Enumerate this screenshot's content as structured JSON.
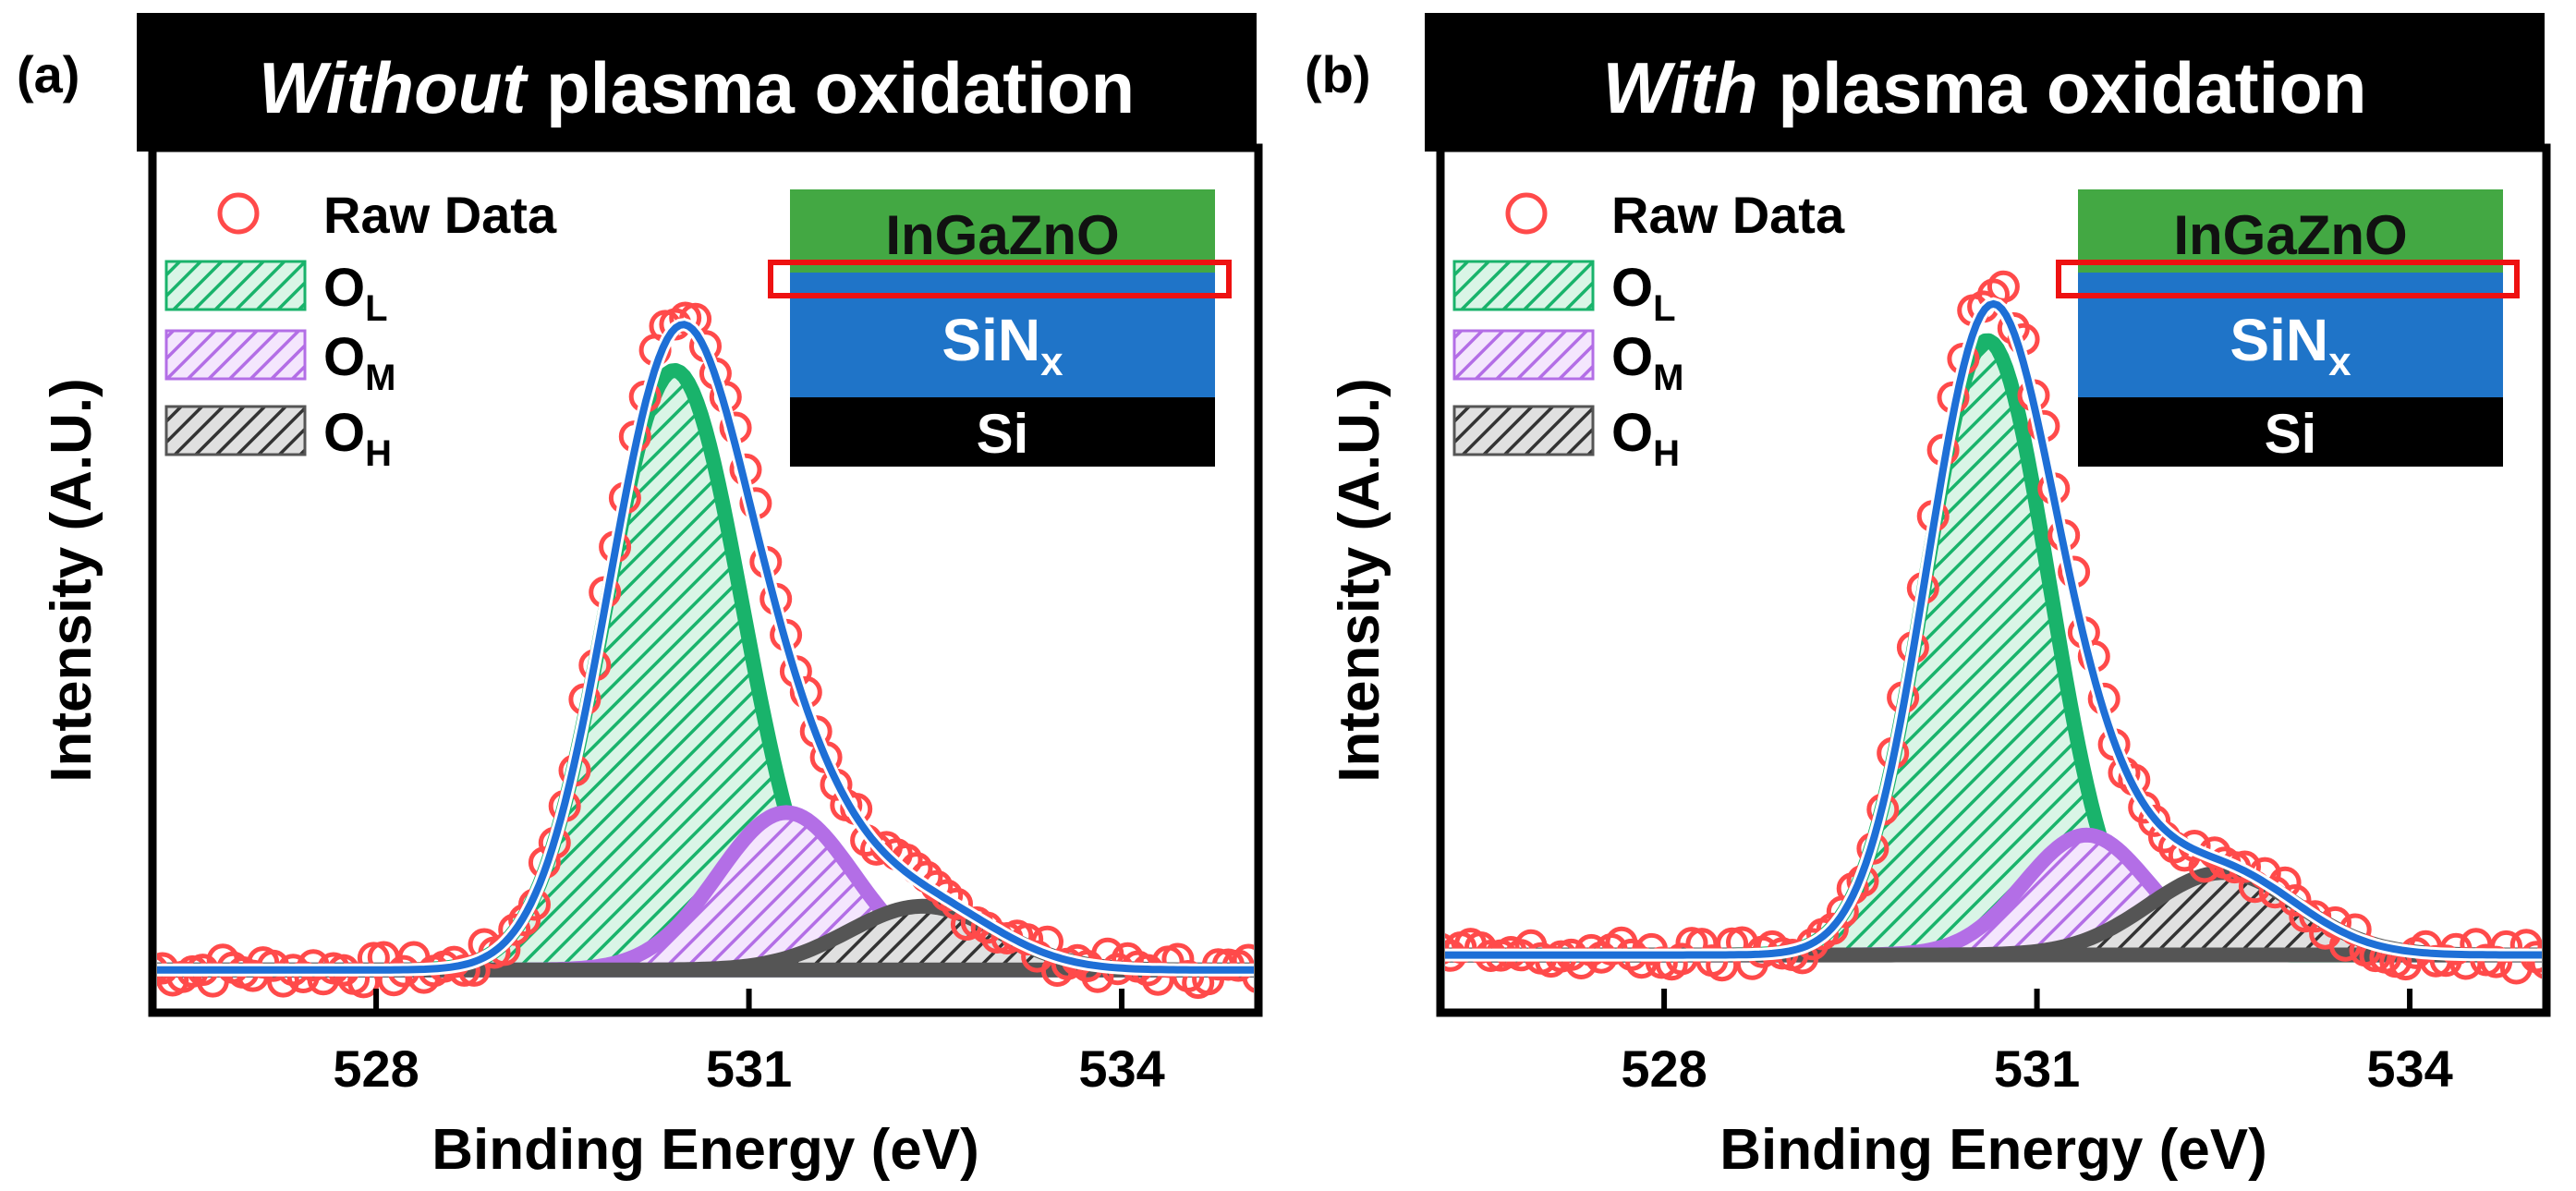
{
  "colors": {
    "raw": "#ff4a4a",
    "fit": "#1e6fd6",
    "ol": "#19b36b",
    "om": "#b36ee6",
    "oh": "#555555",
    "igzo": "#43a843",
    "sin": "#1f74c8",
    "si": "#000000",
    "highlight": "#ee1111"
  },
  "panels": [
    {
      "label": "(a)",
      "title_em": "Without",
      "title_rest": " plasma oxidation",
      "xlabel": "Binding Energy (eV)",
      "ylabel": "Intensity (A.U.)",
      "legend": {
        "raw": "Raw Data",
        "ol": "O",
        "ol_sub": "L",
        "om": "O",
        "om_sub": "M",
        "oh": "O",
        "oh_sub": "H"
      },
      "stack": {
        "top": "InGaZnO",
        "mid": "SiN",
        "mid_sub": "x",
        "bottom": "Si"
      }
    },
    {
      "label": "(b)",
      "title_em": "With",
      "title_rest": " plasma oxidation",
      "xlabel": "Binding Energy (eV)",
      "ylabel": "Intensity (A.U.)",
      "legend": {
        "raw": "Raw Data",
        "ol": "O",
        "ol_sub": "L",
        "om": "O",
        "om_sub": "M",
        "oh": "O",
        "oh_sub": "H"
      },
      "stack": {
        "top": "InGaZnO",
        "mid": "SiN",
        "mid_sub": "x",
        "bottom": "Si"
      }
    }
  ],
  "chart_data": [
    {
      "type": "line",
      "title": "Without plasma oxidation",
      "xlabel": "Binding Energy (eV)",
      "ylabel": "Intensity (A.U.)",
      "xlim": [
        526.2,
        535.1
      ],
      "ylim": [
        0,
        1.08
      ],
      "xticks": [
        528,
        531,
        534
      ],
      "baseline": 0.02,
      "series": [
        {
          "name": "O_L",
          "center": 530.4,
          "height": 0.8,
          "sigma": 0.55
        },
        {
          "name": "O_M",
          "center": 531.3,
          "height": 0.21,
          "sigma": 0.55
        },
        {
          "name": "O_H",
          "center": 532.4,
          "height": 0.085,
          "sigma": 0.6
        }
      ],
      "raw_noise": 0.018
    },
    {
      "type": "line",
      "title": "With plasma oxidation",
      "xlabel": "Binding Energy (eV)",
      "ylabel": "Intensity (A.U.)",
      "xlim": [
        526.2,
        535.1
      ],
      "ylim": [
        0,
        1.08
      ],
      "xticks": [
        528,
        531,
        534
      ],
      "baseline": 0.04,
      "series": [
        {
          "name": "O_L",
          "center": 530.6,
          "height": 0.82,
          "sigma": 0.5
        },
        {
          "name": "O_M",
          "center": 531.4,
          "height": 0.16,
          "sigma": 0.5
        },
        {
          "name": "O_H",
          "center": 532.5,
          "height": 0.11,
          "sigma": 0.6
        }
      ],
      "raw_noise": 0.018
    }
  ]
}
